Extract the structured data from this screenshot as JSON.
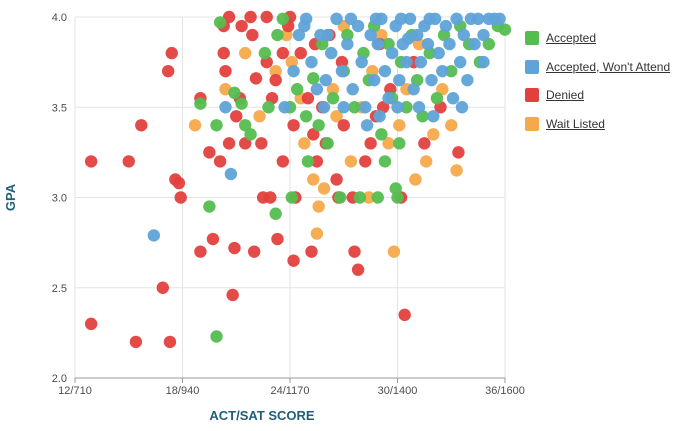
{
  "chart_data": {
    "type": "scatter",
    "title": "",
    "xlabel": "ACT/SAT SCORE",
    "ylabel": "GPA",
    "xlim": [
      12,
      36
    ],
    "ylim": [
      2.0,
      4.0
    ],
    "x_ticks": [
      {
        "value": 12,
        "label": "12/710"
      },
      {
        "value": 18,
        "label": "18/940"
      },
      {
        "value": 24,
        "label": "24/1170"
      },
      {
        "value": 30,
        "label": "30/1400"
      },
      {
        "value": 36,
        "label": "36/1600"
      }
    ],
    "y_ticks": [
      {
        "value": 2.0,
        "label": "2.0"
      },
      {
        "value": 2.5,
        "label": "2.5"
      },
      {
        "value": 3.0,
        "label": "3.0"
      },
      {
        "value": 3.5,
        "label": "3.5"
      },
      {
        "value": 4.0,
        "label": "4.0"
      }
    ],
    "grid": true,
    "legend_position": "right",
    "series": [
      {
        "name": "Wait Listed",
        "color": "#f5a94a",
        "points": [
          [
            18.7,
            3.4
          ],
          [
            20.4,
            3.6
          ],
          [
            21.5,
            3.8
          ],
          [
            22.3,
            3.45
          ],
          [
            23.2,
            3.7
          ],
          [
            23.8,
            3.9
          ],
          [
            24.1,
            3.75
          ],
          [
            24.6,
            3.55
          ],
          [
            24.8,
            3.3
          ],
          [
            25.3,
            3.1
          ],
          [
            25.9,
            3.05
          ],
          [
            26.4,
            3.6
          ],
          [
            26.6,
            3.45
          ],
          [
            27.0,
            3.95
          ],
          [
            27.4,
            3.2
          ],
          [
            28.0,
            3.5
          ],
          [
            28.6,
            3.7
          ],
          [
            29.1,
            3.9
          ],
          [
            29.5,
            3.3
          ],
          [
            30.1,
            3.4
          ],
          [
            30.5,
            3.6
          ],
          [
            31.2,
            3.85
          ],
          [
            31.6,
            3.2
          ],
          [
            32.0,
            3.35
          ],
          [
            32.5,
            3.6
          ],
          [
            33.0,
            3.4
          ],
          [
            33.3,
            3.15
          ],
          [
            25.5,
            2.8
          ],
          [
            29.8,
            2.7
          ],
          [
            25.6,
            2.95
          ],
          [
            28.4,
            3.0
          ],
          [
            31.0,
            3.1
          ]
        ]
      },
      {
        "name": "Denied",
        "color": "#e2403e",
        "points": [
          [
            12.9,
            3.2
          ],
          [
            12.9,
            2.3
          ],
          [
            15.0,
            3.2
          ],
          [
            15.4,
            2.2
          ],
          [
            15.7,
            3.4
          ],
          [
            16.9,
            2.5
          ],
          [
            17.2,
            3.7
          ],
          [
            17.4,
            3.8
          ],
          [
            17.6,
            3.1
          ],
          [
            17.8,
            3.08
          ],
          [
            17.9,
            3.0
          ],
          [
            17.3,
            2.2
          ],
          [
            19.0,
            3.55
          ],
          [
            19.0,
            2.7
          ],
          [
            19.5,
            3.25
          ],
          [
            19.7,
            2.77
          ],
          [
            20.1,
            3.2
          ],
          [
            20.3,
            3.8
          ],
          [
            20.4,
            3.7
          ],
          [
            20.6,
            3.3
          ],
          [
            20.9,
            2.72
          ],
          [
            20.8,
            2.46
          ],
          [
            20.3,
            3.95
          ],
          [
            21.0,
            3.45
          ],
          [
            21.2,
            3.55
          ],
          [
            21.5,
            3.3
          ],
          [
            21.9,
            3.9
          ],
          [
            22.1,
            3.66
          ],
          [
            22.5,
            3.0
          ],
          [
            22.4,
            3.3
          ],
          [
            22.0,
            2.7
          ],
          [
            22.9,
            3.0
          ],
          [
            23.0,
            3.55
          ],
          [
            23.2,
            3.65
          ],
          [
            23.3,
            2.77
          ],
          [
            23.6,
            3.2
          ],
          [
            23.9,
            3.95
          ],
          [
            24.2,
            3.4
          ],
          [
            24.3,
            3.0
          ],
          [
            24.2,
            2.65
          ],
          [
            24.6,
            3.8
          ],
          [
            25.0,
            3.55
          ],
          [
            25.3,
            3.35
          ],
          [
            25.5,
            3.2
          ],
          [
            25.2,
            2.7
          ],
          [
            25.8,
            3.5
          ],
          [
            26.0,
            3.3
          ],
          [
            26.2,
            3.9
          ],
          [
            26.6,
            3.1
          ],
          [
            26.7,
            3.0
          ],
          [
            27.0,
            3.4
          ],
          [
            27.5,
            3.0
          ],
          [
            27.6,
            2.7
          ],
          [
            27.8,
            2.6
          ],
          [
            28.2,
            3.2
          ],
          [
            28.5,
            3.3
          ],
          [
            28.8,
            3.45
          ],
          [
            29.2,
            3.5
          ],
          [
            29.6,
            3.6
          ],
          [
            30.2,
            3.0
          ],
          [
            30.4,
            2.35
          ],
          [
            30.9,
            3.75
          ],
          [
            31.5,
            3.3
          ],
          [
            32.4,
            3.5
          ],
          [
            33.4,
            3.25
          ],
          [
            22.7,
            3.75
          ],
          [
            23.6,
            3.8
          ],
          [
            21.3,
            3.95
          ],
          [
            20.6,
            4.0
          ],
          [
            21.8,
            4.0
          ],
          [
            22.7,
            4.0
          ],
          [
            24.0,
            4.0
          ],
          [
            25.4,
            3.85
          ],
          [
            26.9,
            3.75
          ],
          [
            29.0,
            3.85
          ]
        ]
      },
      {
        "name": "Accepted",
        "color": "#55bd50",
        "points": [
          [
            19.0,
            3.52
          ],
          [
            19.5,
            2.95
          ],
          [
            19.9,
            3.4
          ],
          [
            19.9,
            2.23
          ],
          [
            20.1,
            3.97
          ],
          [
            20.9,
            3.58
          ],
          [
            21.3,
            3.52
          ],
          [
            21.5,
            3.4
          ],
          [
            21.8,
            3.35
          ],
          [
            22.6,
            3.8
          ],
          [
            22.8,
            3.5
          ],
          [
            23.2,
            2.91
          ],
          [
            23.3,
            3.9
          ],
          [
            23.6,
            3.99
          ],
          [
            24.0,
            3.5
          ],
          [
            24.1,
            3.0
          ],
          [
            24.4,
            3.6
          ],
          [
            24.9,
            3.45
          ],
          [
            25.0,
            3.2
          ],
          [
            25.3,
            3.66
          ],
          [
            25.6,
            3.4
          ],
          [
            25.8,
            3.85
          ],
          [
            26.1,
            3.3
          ],
          [
            26.4,
            3.55
          ],
          [
            26.8,
            3.0
          ],
          [
            27.0,
            3.7
          ],
          [
            27.2,
            3.9
          ],
          [
            27.6,
            3.5
          ],
          [
            27.9,
            3.0
          ],
          [
            28.1,
            3.8
          ],
          [
            28.4,
            3.65
          ],
          [
            28.7,
            3.95
          ],
          [
            29.1,
            3.35
          ],
          [
            29.3,
            3.2
          ],
          [
            29.5,
            3.85
          ],
          [
            29.7,
            3.55
          ],
          [
            30.0,
            3.0
          ],
          [
            30.2,
            3.75
          ],
          [
            30.5,
            3.5
          ],
          [
            30.8,
            3.9
          ],
          [
            31.1,
            3.65
          ],
          [
            31.4,
            3.45
          ],
          [
            31.8,
            3.8
          ],
          [
            32.2,
            3.55
          ],
          [
            32.6,
            3.9
          ],
          [
            33.0,
            3.7
          ],
          [
            33.5,
            3.95
          ],
          [
            34.0,
            3.85
          ],
          [
            34.6,
            3.75
          ],
          [
            35.1,
            3.85
          ],
          [
            35.6,
            3.95
          ],
          [
            36.0,
            3.93
          ],
          [
            30.1,
            3.3
          ],
          [
            28.9,
            3.0
          ],
          [
            29.9,
            3.05
          ]
        ]
      },
      {
        "name": "Accepted, Won't Attend",
        "color": "#5fa3d9",
        "points": [
          [
            16.4,
            2.79
          ],
          [
            20.4,
            3.5
          ],
          [
            20.7,
            3.13
          ],
          [
            23.7,
            3.5
          ],
          [
            24.2,
            3.7
          ],
          [
            24.5,
            3.9
          ],
          [
            24.8,
            3.95
          ],
          [
            25.2,
            3.75
          ],
          [
            25.5,
            3.6
          ],
          [
            25.9,
            3.5
          ],
          [
            26.1,
            3.9
          ],
          [
            26.3,
            3.8
          ],
          [
            26.6,
            3.99
          ],
          [
            26.9,
            3.7
          ],
          [
            27.2,
            3.85
          ],
          [
            27.5,
            3.6
          ],
          [
            27.8,
            3.95
          ],
          [
            28.0,
            3.75
          ],
          [
            28.2,
            3.5
          ],
          [
            28.5,
            3.9
          ],
          [
            28.7,
            3.65
          ],
          [
            28.9,
            3.85
          ],
          [
            29.1,
            3.99
          ],
          [
            29.3,
            3.7
          ],
          [
            29.5,
            3.55
          ],
          [
            29.7,
            3.8
          ],
          [
            29.9,
            3.95
          ],
          [
            30.1,
            3.65
          ],
          [
            30.3,
            3.85
          ],
          [
            30.5,
            3.75
          ],
          [
            30.7,
            3.99
          ],
          [
            30.9,
            3.6
          ],
          [
            31.1,
            3.9
          ],
          [
            31.3,
            3.75
          ],
          [
            31.5,
            3.95
          ],
          [
            31.7,
            3.85
          ],
          [
            31.9,
            3.65
          ],
          [
            32.1,
            3.99
          ],
          [
            32.3,
            3.8
          ],
          [
            32.5,
            3.7
          ],
          [
            32.7,
            3.95
          ],
          [
            32.9,
            3.85
          ],
          [
            33.1,
            3.55
          ],
          [
            33.3,
            3.99
          ],
          [
            33.5,
            3.75
          ],
          [
            33.7,
            3.9
          ],
          [
            33.9,
            3.65
          ],
          [
            34.1,
            3.99
          ],
          [
            34.3,
            3.85
          ],
          [
            34.5,
            3.99
          ],
          [
            34.8,
            3.9
          ],
          [
            35.1,
            3.99
          ],
          [
            35.4,
            3.99
          ],
          [
            35.7,
            3.99
          ],
          [
            31.2,
            3.5
          ],
          [
            32.0,
            3.45
          ],
          [
            30.0,
            3.5
          ],
          [
            29.0,
            3.45
          ],
          [
            27.0,
            3.5
          ],
          [
            26.0,
            3.65
          ],
          [
            28.3,
            3.4
          ],
          [
            33.6,
            3.5
          ],
          [
            30.6,
            3.88
          ],
          [
            31.8,
            3.99
          ],
          [
            34.8,
            3.75
          ],
          [
            27.4,
            3.99
          ],
          [
            25.7,
            3.9
          ],
          [
            24.9,
            3.99
          ],
          [
            28.8,
            3.99
          ],
          [
            30.2,
            3.99
          ]
        ]
      }
    ],
    "legend_order": [
      "Accepted",
      "Accepted, Won't Attend",
      "Denied",
      "Wait Listed"
    ]
  }
}
